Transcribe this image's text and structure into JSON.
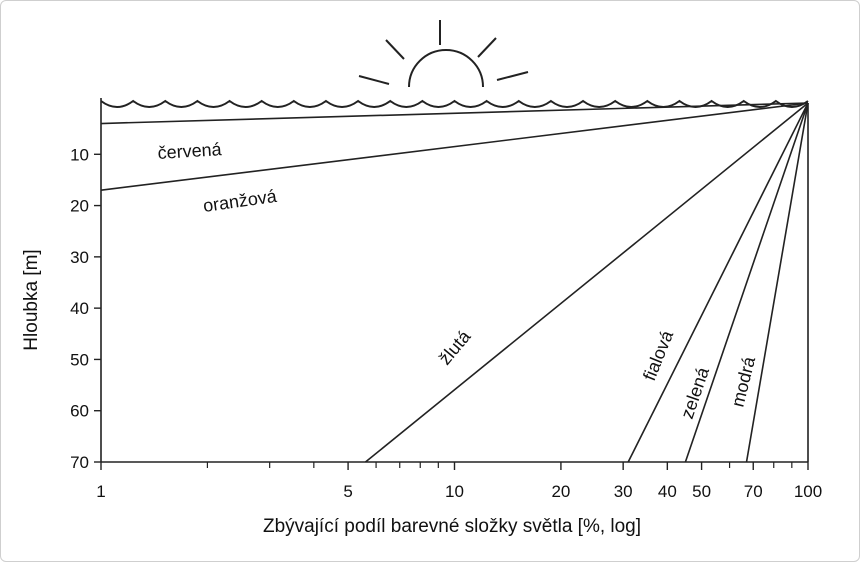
{
  "chart_data": {
    "type": "line",
    "xlabel": "Zbývající podíl barevné složky světla [%, log]",
    "ylabel": "Hloubka [m]",
    "x_scale": "log",
    "xlim": [
      1,
      100
    ],
    "ylim": [
      70,
      0
    ],
    "x_ticks": [
      1,
      5,
      10,
      20,
      30,
      40,
      50,
      70,
      100
    ],
    "x_minor_ticks": [
      2,
      3,
      4,
      6,
      7,
      8,
      9,
      60,
      80,
      90
    ],
    "y_ticks": [
      10,
      20,
      30,
      40,
      50,
      60,
      70
    ],
    "grid": false,
    "series": [
      {
        "name": "červená",
        "x": [
          100,
          1
        ],
        "y": [
          0,
          4
        ]
      },
      {
        "name": "oranžová",
        "x": [
          100,
          1
        ],
        "y": [
          0,
          17
        ]
      },
      {
        "name": "žlutá",
        "x": [
          100,
          5.6
        ],
        "y": [
          0,
          70
        ]
      },
      {
        "name": "fialová",
        "x": [
          100,
          31
        ],
        "y": [
          0,
          70
        ]
      },
      {
        "name": "zelená",
        "x": [
          100,
          45
        ],
        "y": [
          0,
          70
        ]
      },
      {
        "name": "modrá",
        "x": [
          100,
          67
        ],
        "y": [
          0,
          70
        ]
      }
    ]
  }
}
